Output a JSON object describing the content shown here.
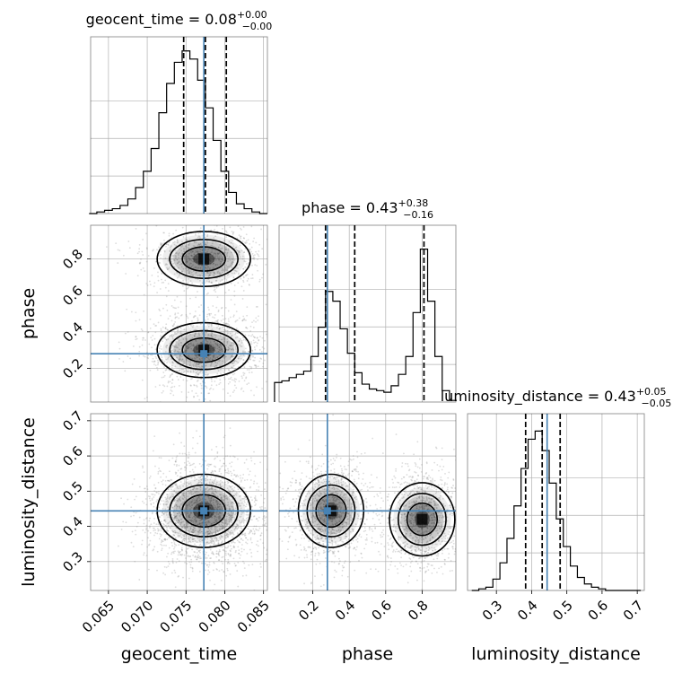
{
  "chart_data": {
    "type": "corner",
    "parameters": [
      "geocent_time",
      "phase",
      "luminosity_distance"
    ],
    "titles": [
      {
        "param": "geocent_time",
        "prefix": "geocent_time = ",
        "value": "0.08",
        "plus": "+0.00",
        "minus": "−0.00"
      },
      {
        "param": "phase",
        "prefix": "phase = ",
        "value": "0.43",
        "plus": "+0.38",
        "minus": "−0.16"
      },
      {
        "param": "luminosity_distance",
        "prefix": "luminosity_distance = ",
        "value": "0.43",
        "plus": "+0.05",
        "minus": "−0.05"
      }
    ],
    "ranges": {
      "geocent_time": [
        0.0627,
        0.0855
      ],
      "phase": [
        0.015,
        0.985
      ],
      "luminosity_distance": [
        0.218,
        0.72
      ]
    },
    "ticks": {
      "geocent_time": [
        "0.065",
        "0.070",
        "0.075",
        "0.080",
        "0.085"
      ],
      "phase": [
        "0.2",
        "0.4",
        "0.6",
        "0.8"
      ],
      "luminosity_distance": [
        "0.3",
        "0.4",
        "0.5",
        "0.6",
        "0.7"
      ]
    },
    "truths": {
      "geocent_time": 0.0773,
      "phase": 0.28,
      "luminosity_distance": 0.444
    },
    "quantiles": {
      "geocent_time": [
        0.0747,
        0.0775,
        0.0802
      ],
      "phase": [
        0.27,
        0.43,
        0.81
      ],
      "luminosity_distance": [
        0.383,
        0.43,
        0.481
      ]
    },
    "histograms": {
      "geocent_time": {
        "x": [
          0.063,
          0.064,
          0.065,
          0.066,
          0.067,
          0.068,
          0.069,
          0.07,
          0.071,
          0.072,
          0.073,
          0.074,
          0.075,
          0.076,
          0.077,
          0.078,
          0.079,
          0.08,
          0.081,
          0.082,
          0.083,
          0.084,
          0.085
        ],
        "counts": [
          0.0,
          0.01,
          0.02,
          0.03,
          0.05,
          0.09,
          0.16,
          0.26,
          0.4,
          0.62,
          0.8,
          0.93,
          1.0,
          0.95,
          0.82,
          0.65,
          0.45,
          0.26,
          0.13,
          0.06,
          0.03,
          0.01,
          0.0
        ]
      },
      "phase": {
        "x": [
          0.01,
          0.05,
          0.09,
          0.13,
          0.17,
          0.21,
          0.25,
          0.29,
          0.33,
          0.37,
          0.41,
          0.45,
          0.49,
          0.53,
          0.57,
          0.61,
          0.65,
          0.69,
          0.73,
          0.77,
          0.81,
          0.85,
          0.89,
          0.93,
          0.97
        ],
        "counts": [
          0.12,
          0.13,
          0.15,
          0.17,
          0.19,
          0.28,
          0.46,
          0.68,
          0.62,
          0.45,
          0.3,
          0.18,
          0.11,
          0.08,
          0.07,
          0.06,
          0.1,
          0.17,
          0.28,
          0.55,
          0.94,
          0.62,
          0.28,
          0.07,
          0.01
        ]
      },
      "luminosity_distance": {
        "x": [
          0.24,
          0.26,
          0.28,
          0.3,
          0.32,
          0.34,
          0.36,
          0.38,
          0.4,
          0.42,
          0.44,
          0.46,
          0.48,
          0.5,
          0.52,
          0.54,
          0.56,
          0.58,
          0.6,
          0.62,
          0.64,
          0.66,
          0.68,
          0.7
        ],
        "counts": [
          0.0,
          0.01,
          0.02,
          0.07,
          0.17,
          0.32,
          0.52,
          0.75,
          0.93,
          0.98,
          0.86,
          0.66,
          0.44,
          0.27,
          0.15,
          0.08,
          0.04,
          0.02,
          0.01,
          0.0,
          0.0,
          0.0,
          0.0,
          0.0
        ]
      }
    },
    "modes": [
      {
        "geocent_time": 0.0773,
        "phase": 0.3,
        "luminosity_distance": 0.444
      },
      {
        "geocent_time": 0.0773,
        "phase": 0.8,
        "luminosity_distance": 0.42
      }
    ],
    "grid": true,
    "colors": {
      "truth": "#4682b4",
      "hist": "#000000",
      "quantile": "#000000",
      "grid": "#b0b0b0"
    }
  }
}
